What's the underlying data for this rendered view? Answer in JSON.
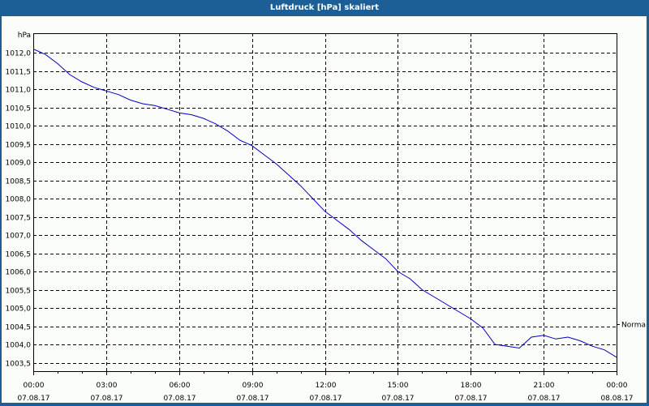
{
  "window": {
    "title": "Luftdruck [hPa] skaliert"
  },
  "colors": {
    "titlebar": "#1b5f96",
    "background": "#fbfdfb",
    "line": "#0000c0",
    "grid": "#000000"
  },
  "chart_data": {
    "type": "line",
    "title": "Luftdruck [hPa] skaliert",
    "ylabel": "hPa",
    "xlabel": "",
    "ylim": [
      1003.24,
      1012.5
    ],
    "grid": true,
    "y_ticks": [
      "1012,0",
      "1011,5",
      "1011,0",
      "1010,5",
      "1010,0",
      "1009,5",
      "1009,0",
      "1008,5",
      "1008,0",
      "1007,5",
      "1007,0",
      "1006,5",
      "1006,0",
      "1005,5",
      "1005,0",
      "1004,5",
      "1004,0",
      "1003,5"
    ],
    "y_tick_values": [
      1012.0,
      1011.5,
      1011.0,
      1010.5,
      1010.0,
      1009.5,
      1009.0,
      1008.5,
      1008.0,
      1007.5,
      1007.0,
      1006.5,
      1006.0,
      1005.5,
      1005.0,
      1004.5,
      1004.0,
      1003.5
    ],
    "x_ticks": [
      {
        "time": "00:00",
        "date": "07.08.17"
      },
      {
        "time": "03:00",
        "date": "07.08.17"
      },
      {
        "time": "06:00",
        "date": "07.08.17"
      },
      {
        "time": "09:00",
        "date": "07.08.17"
      },
      {
        "time": "12:00",
        "date": "07.08.17"
      },
      {
        "time": "15:00",
        "date": "07.08.17"
      },
      {
        "time": "18:00",
        "date": "07.08.17"
      },
      {
        "time": "21:00",
        "date": "07.08.17"
      },
      {
        "time": "00:00",
        "date": "08.08.17"
      }
    ],
    "annotations": [
      {
        "label": "Normal",
        "y": 1004.55,
        "side": "right"
      }
    ],
    "series": [
      {
        "name": "Luftdruck",
        "x_hours": [
          0,
          0.5,
          1,
          1.5,
          2,
          2.5,
          3,
          3.5,
          4,
          4.5,
          5,
          5.5,
          6,
          6.5,
          7,
          7.5,
          8,
          8.5,
          9,
          9.5,
          10,
          10.5,
          11,
          11.5,
          12,
          12.5,
          13,
          13.5,
          14,
          14.5,
          15,
          15.5,
          16,
          16.5,
          17,
          17.5,
          18,
          18.5,
          19,
          19.5,
          20,
          20.5,
          21,
          21.5,
          22,
          22.5,
          23,
          23.5,
          24
        ],
        "values": [
          1012.1,
          1011.95,
          1011.7,
          1011.4,
          1011.2,
          1011.05,
          1010.95,
          1010.85,
          1010.7,
          1010.6,
          1010.55,
          1010.45,
          1010.35,
          1010.3,
          1010.2,
          1010.05,
          1009.85,
          1009.6,
          1009.45,
          1009.2,
          1008.95,
          1008.65,
          1008.35,
          1008.0,
          1007.65,
          1007.4,
          1007.15,
          1006.85,
          1006.6,
          1006.35,
          1006.0,
          1005.8,
          1005.5,
          1005.3,
          1005.1,
          1004.9,
          1004.7,
          1004.45,
          1004.0,
          1003.95,
          1003.9,
          1004.2,
          1004.25,
          1004.15,
          1004.2,
          1004.1,
          1003.95,
          1003.85,
          1003.65
        ]
      }
    ]
  }
}
